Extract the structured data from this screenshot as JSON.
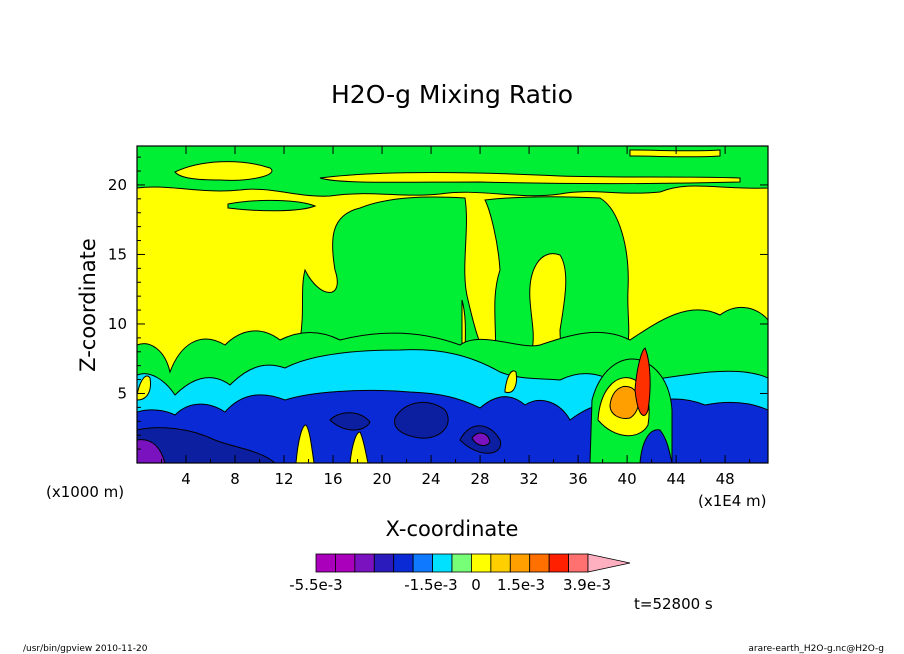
{
  "chart_data": {
    "type": "heatmap",
    "title": "H2O-g Mixing Ratio",
    "xlabel": "X-coordinate",
    "ylabel": "Z-coordinate",
    "x_unit_label": "(x1000 m)",
    "x_scale_label": "(x1E4 m)",
    "xlim": [
      0,
      51.5
    ],
    "ylim": [
      0,
      22.8
    ],
    "x_ticks": [
      4,
      8,
      12,
      16,
      20,
      24,
      28,
      32,
      36,
      40,
      44,
      48
    ],
    "y_ticks": [
      5,
      10,
      15,
      20
    ],
    "grid": false,
    "colorbar": {
      "labels": [
        "-5.5e-3",
        "-1.5e-3",
        "0",
        "1.5e-3",
        "3.9e-3"
      ],
      "colors": [
        "#aa00bb",
        "#aa00bb",
        "#7b12c0",
        "#2b1bbd",
        "#0a2ad6",
        "#0f79ff",
        "#00e0ff",
        "#77ff77",
        "#ffff00",
        "#ffcf00",
        "#ffa000",
        "#ff7000",
        "#ff2000",
        "#ff7070",
        "#ffb0c0"
      ]
    },
    "time_label": "t=52800 s"
  },
  "footer": {
    "left": "/usr/bin/gpview  2010-11-20",
    "right": "arare-earth_H2O-g.nc@H2O-g"
  },
  "colors": {
    "yellow": "#ffff00",
    "green": "#00ee33",
    "cyan": "#00e0ff",
    "blue": "#0a2ad6",
    "navy": "#0b1fa0",
    "purple": "#7b12c0",
    "orange": "#ffa000",
    "red": "#ff3000"
  }
}
